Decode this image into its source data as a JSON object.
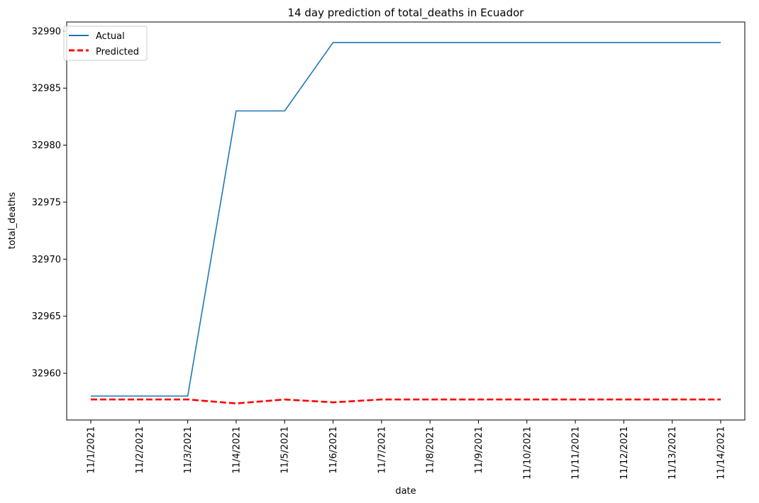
{
  "chart_data": {
    "type": "line",
    "title": "14 day prediction of total_deaths in Ecuador",
    "xlabel": "date",
    "ylabel": "total_deaths",
    "categories": [
      "11/1/2021",
      "11/2/2021",
      "11/3/2021",
      "11/4/2021",
      "11/5/2021",
      "11/6/2021",
      "11/7/2021",
      "11/8/2021",
      "11/9/2021",
      "11/10/2021",
      "11/11/2021",
      "11/12/2021",
      "11/13/2021",
      "11/14/2021"
    ],
    "ylim": [
      32955.9,
      32990.8
    ],
    "yticks": [
      32960,
      32965,
      32970,
      32975,
      32980,
      32985,
      32990
    ],
    "grid": false,
    "legend_position": "top-left",
    "series": [
      {
        "name": "Actual",
        "color": "#1f77b4",
        "style": "solid",
        "values": [
          32958,
          32958,
          32958,
          32983,
          32983,
          32989,
          32989,
          32989,
          32989,
          32989,
          32989,
          32989,
          32989,
          32989
        ]
      },
      {
        "name": "Predicted",
        "color": "#ff0000",
        "style": "dashed",
        "values": [
          32957.7,
          32957.7,
          32957.7,
          32957.35,
          32957.7,
          32957.45,
          32957.7,
          32957.7,
          32957.7,
          32957.7,
          32957.7,
          32957.7,
          32957.7,
          32957.7
        ]
      }
    ]
  }
}
